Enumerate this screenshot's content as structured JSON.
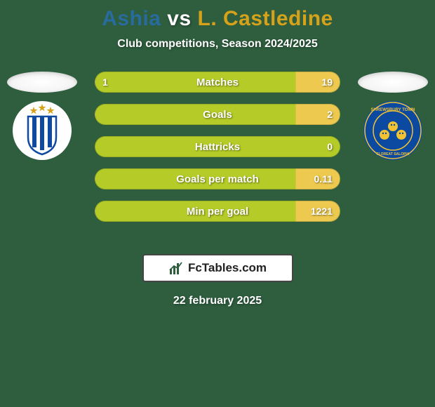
{
  "background_color": "#2e5e3e",
  "title": {
    "left": "Ashia",
    "vs": "vs",
    "right": "L. Castledine",
    "left_color": "#286b9e",
    "right_color": "#d6a21a"
  },
  "subtitle": "Club competitions, Season 2024/2025",
  "stats": {
    "bar_bg": "#b5cc28",
    "highlight_left": "#6fa8d6",
    "highlight_right": "#edc94f",
    "rows": [
      {
        "label": "Matches",
        "left": "1",
        "right": "19",
        "better": "right"
      },
      {
        "label": "Goals",
        "left": "",
        "right": "2",
        "better": "right"
      },
      {
        "label": "Hattricks",
        "left": "",
        "right": "0",
        "better": "none"
      },
      {
        "label": "Goals per match",
        "left": "",
        "right": "0.11",
        "better": "right"
      },
      {
        "label": "Min per goal",
        "left": "",
        "right": "1221",
        "better": "right"
      }
    ]
  },
  "crest_left": {
    "bg": "#ffffff",
    "accent": "#0f4aa0",
    "stars": "#d6a21a",
    "stripe": "#0f4aa0"
  },
  "crest_right": {
    "bg": "#0b4aa0",
    "ring": "#f2c233",
    "lion": "#f2c233"
  },
  "branding": {
    "icon_color": "#2e5e3e",
    "text": "FcTables.com"
  },
  "date": "22 february 2025"
}
